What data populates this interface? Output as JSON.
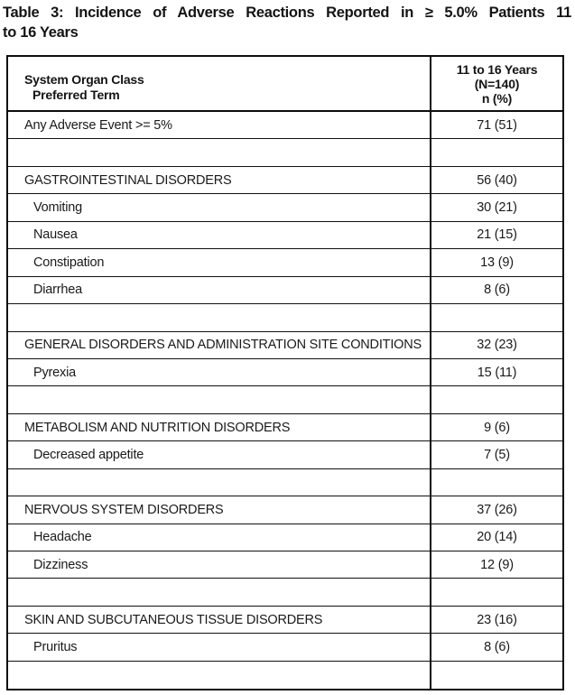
{
  "title": {
    "line1": "Table 3: Incidence of Adverse Reactions Reported in ≥ 5.0% Patients 11",
    "line2": "to 16 Years"
  },
  "table": {
    "header": {
      "col1_line1": "System Organ Class",
      "col1_line2": "Preferred Term",
      "col2_line1": "11 to 16 Years",
      "col2_line2": "(N=140)",
      "col2_line3": "n (%)"
    },
    "rows": [
      {
        "type": "event",
        "label": "Any Adverse Event >= 5%",
        "value": "71 (51)"
      },
      {
        "type": "blank",
        "label": "",
        "value": ""
      },
      {
        "type": "section",
        "label": "GASTROINTESTINAL DISORDERS",
        "value": "56 (40)"
      },
      {
        "type": "term",
        "label": "Vomiting",
        "value": "30 (21)"
      },
      {
        "type": "term",
        "label": "Nausea",
        "value": "21 (15)"
      },
      {
        "type": "term",
        "label": "Constipation",
        "value": "13 (9)"
      },
      {
        "type": "term",
        "label": "Diarrhea",
        "value": "8 (6)"
      },
      {
        "type": "blank",
        "label": "",
        "value": ""
      },
      {
        "type": "section",
        "label": "GENERAL DISORDERS AND ADMINISTRATION SITE CONDITIONS",
        "value": "32 (23)"
      },
      {
        "type": "term",
        "label": "Pyrexia",
        "value": "15 (11)"
      },
      {
        "type": "blank",
        "label": "",
        "value": ""
      },
      {
        "type": "section",
        "label": "METABOLISM AND NUTRITION DISORDERS",
        "value": "9 (6)"
      },
      {
        "type": "term",
        "label": "Decreased appetite",
        "value": "7 (5)"
      },
      {
        "type": "blank",
        "label": "",
        "value": ""
      },
      {
        "type": "section",
        "label": "NERVOUS SYSTEM DISORDERS",
        "value": "37 (26)"
      },
      {
        "type": "term",
        "label": "Headache",
        "value": "20 (14)"
      },
      {
        "type": "term",
        "label": "Dizziness",
        "value": "12 (9)"
      },
      {
        "type": "blank",
        "label": "",
        "value": ""
      },
      {
        "type": "section",
        "label": "SKIN AND SUBCUTANEOUS TISSUE DISORDERS",
        "value": "23 (16)"
      },
      {
        "type": "term",
        "label": "Pruritus",
        "value": "8 (6)"
      },
      {
        "type": "blank",
        "label": "",
        "value": ""
      }
    ]
  },
  "colors": {
    "text": "#1a1a1a",
    "border": "#0e0e0e",
    "background": "#ffffff"
  }
}
